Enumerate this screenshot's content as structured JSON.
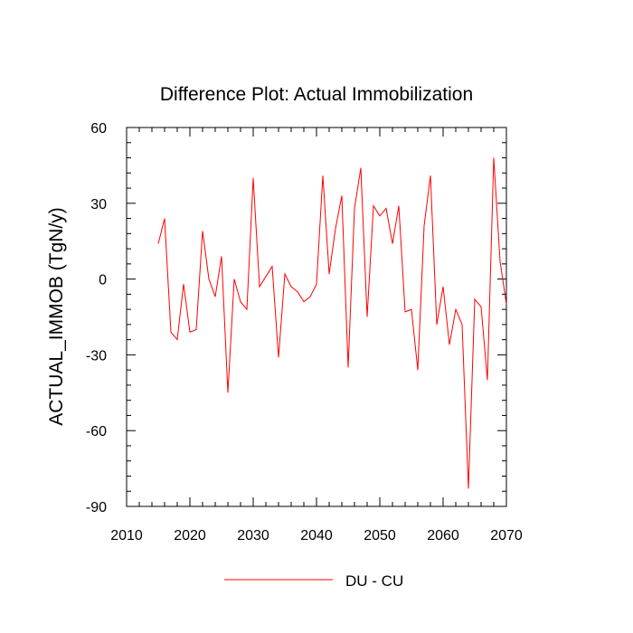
{
  "chart_data": {
    "type": "line",
    "title": "Difference Plot: Actual Immobilization",
    "xlabel": "",
    "ylabel": "ACTUAL_IMMOB  (TgN/y)",
    "xlim": [
      2010,
      2070
    ],
    "ylim": [
      -90,
      60
    ],
    "xticks": [
      2010,
      2020,
      2030,
      2040,
      2050,
      2060,
      2070
    ],
    "yticks": [
      60,
      30,
      0,
      -30,
      -60,
      -90
    ],
    "x_minor_step": 2,
    "y_minor_step": 6,
    "grid": false,
    "legend_position": "bottom-center",
    "series": [
      {
        "name": "DU - CU",
        "color": "#ff0000",
        "x": [
          2015,
          2016,
          2017,
          2018,
          2019,
          2020,
          2021,
          2022,
          2023,
          2024,
          2025,
          2026,
          2027,
          2028,
          2029,
          2030,
          2031,
          2032,
          2033,
          2034,
          2035,
          2036,
          2037,
          2038,
          2039,
          2040,
          2041,
          2042,
          2043,
          2044,
          2045,
          2046,
          2047,
          2048,
          2049,
          2050,
          2051,
          2052,
          2053,
          2054,
          2055,
          2056,
          2057,
          2058,
          2059,
          2060,
          2061,
          2062,
          2063,
          2064,
          2065,
          2066,
          2067,
          2068,
          2069,
          2070
        ],
        "values": [
          14,
          24,
          -21,
          -24,
          -2,
          -21,
          -20,
          19,
          0,
          -7,
          9,
          -45,
          0,
          -9,
          -12,
          40,
          -3,
          1,
          5,
          -31,
          2,
          -3,
          -5,
          -9,
          -7,
          -2,
          41,
          2,
          20,
          33,
          -35,
          28,
          44,
          -15,
          29,
          25,
          28,
          14,
          29,
          -13,
          -12,
          -36,
          21,
          41,
          -18,
          -3,
          -26,
          -12,
          -18,
          -83,
          -8,
          -11,
          -40,
          48,
          7,
          -10
        ]
      }
    ]
  }
}
